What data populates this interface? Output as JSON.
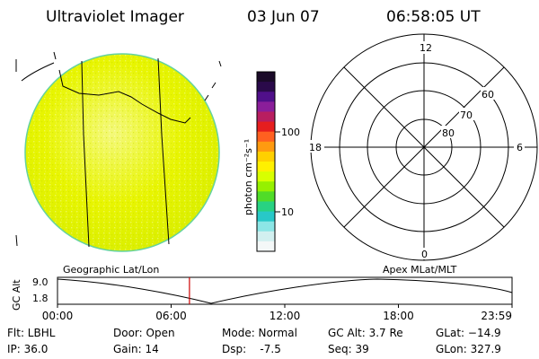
{
  "header": {
    "title": "Ultraviolet Imager",
    "date": "03 Jun 07",
    "time": "06:58:05 UT"
  },
  "colorbar": {
    "label": "photon cm⁻²s⁻¹",
    "ticks": [
      {
        "label": "100",
        "value": 100
      },
      {
        "label": "10",
        "value": 10
      }
    ],
    "colors_top_to_bottom": [
      "#1a0a28",
      "#2a0a4a",
      "#50108a",
      "#8a1e9a",
      "#b81e60",
      "#e61e1e",
      "#ff6020",
      "#ff9a10",
      "#ffd000",
      "#fff000",
      "#d8ff00",
      "#96f000",
      "#50dc28",
      "#28d282",
      "#28c8c8",
      "#8ce6e6",
      "#d2f0f0",
      "#f4f8f8"
    ]
  },
  "image_panel": {
    "disk_colors": [
      "#e8f500",
      "#f4f97a",
      "#d9ee00"
    ],
    "rim_color": "#64d2a0"
  },
  "polar_plot": {
    "mlt_labels": {
      "top": "12",
      "left": "18",
      "right": "6",
      "bottom": "0"
    },
    "lat_labels": [
      "60",
      "70",
      "80"
    ]
  },
  "timeline": {
    "gc_alt_label": "GC Alt",
    "alt_max": "9.0",
    "alt_min": "1.8",
    "left_caption": "Geographic Lat/Lon",
    "right_caption": "Apex MLat/MLT",
    "x_ticks": [
      "00:00",
      "06:00",
      "12:00",
      "18:00",
      "23:59"
    ],
    "current_time_hours": 6.968,
    "marker_color": "#cc0000"
  },
  "info": {
    "filter": "Flt: LBHL",
    "ip": "IP: 36.0",
    "door": "Door: Open",
    "gain": "Gain: 14",
    "mode": "Mode: Normal",
    "dsp": "Dsp:    -7.5",
    "gc_alt": "GC Alt: 3.7 Re",
    "seq": "Seq: 39",
    "glat": "GLat: −14.9",
    "glon": "GLon: 327.9"
  }
}
